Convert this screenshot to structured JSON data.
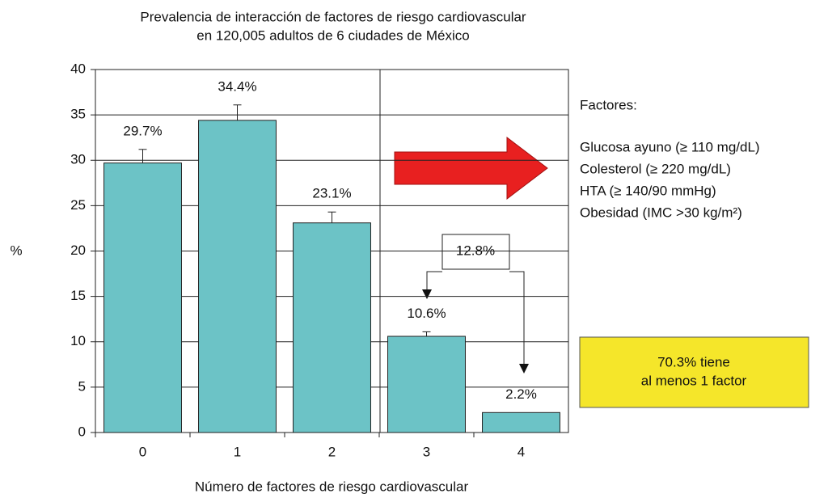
{
  "chart_data": {
    "type": "bar",
    "title": [
      "Prevalencia de interacción de factores de riesgo cardiovascular",
      "en 120,005 adultos de 6 ciudades de México"
    ],
    "x_label": "Número de factores de riesgo cardiovascular",
    "y_label": "%",
    "categories": [
      "0",
      "1",
      "2",
      "3",
      "4"
    ],
    "values": [
      29.7,
      34.4,
      23.1,
      10.6,
      2.2
    ],
    "value_labels": [
      "29.7%",
      "34.4%",
      "23.1%",
      "10.6%",
      "2.2%"
    ],
    "errors": [
      1.5,
      1.7,
      1.2,
      0.5,
      null
    ],
    "color": "#6cc3c6",
    "ylim": [
      0,
      40
    ],
    "yticks": [
      0,
      5,
      10,
      15,
      20,
      25,
      30,
      35,
      40
    ],
    "grid": true,
    "bracket_label": "12.8%",
    "factors_title": "Factores:",
    "factors": [
      "Glucosa ayuno (≥ 110 mg/dL)",
      "Colesterol (≥ 220 mg/dL)",
      "HTA (≥ 140/90 mmHg)",
      "Obesidad (IMC >30 kg/m²)"
    ],
    "summary": [
      "70.3% tiene",
      "al menos 1 factor"
    ]
  }
}
